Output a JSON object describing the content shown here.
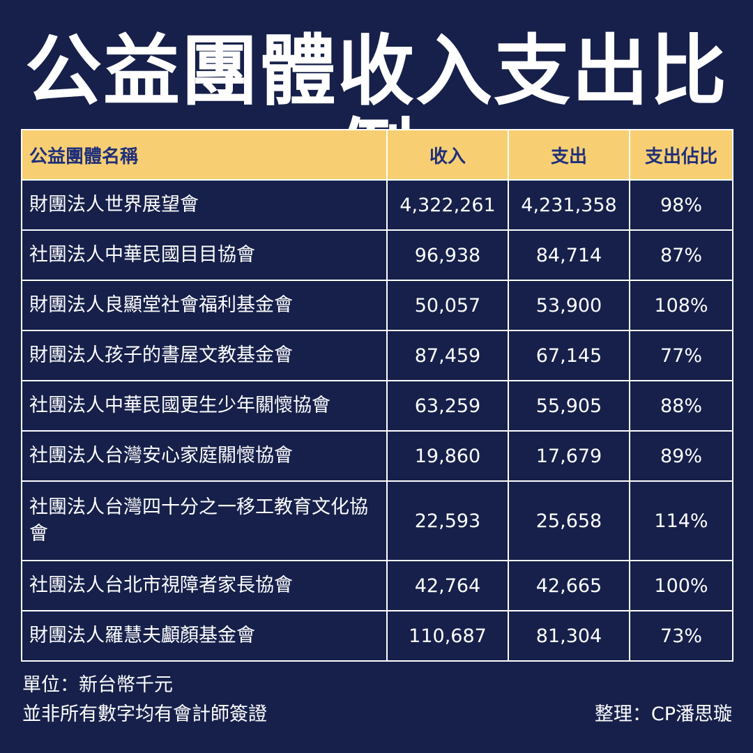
{
  "title": "公益團體收入支出比例",
  "table": {
    "headers": [
      "公益團體名稱",
      "收入",
      "支出",
      "支出佔比"
    ],
    "rows": [
      [
        "財團法人世界展望會",
        "4,322,261",
        "4,231,358",
        "98%"
      ],
      [
        "社團法人中華民國目目協會",
        "96,938",
        "84,714",
        "87%"
      ],
      [
        "財團法人良顯堂社會福利基金會",
        "50,057",
        "53,900",
        "108%"
      ],
      [
        "財團法人孩子的書屋文教基金會",
        "87,459",
        "67,145",
        "77%"
      ],
      [
        "社團法人中華民國更生少年關懷協會",
        "63,259",
        "55,905",
        "88%"
      ],
      [
        "社團法人台灣安心家庭關懷協會",
        "19,860",
        "17,679",
        "89%"
      ],
      [
        "社團法人台灣四十分之一移工教育文化協會",
        "22,593",
        "25,658",
        "114%"
      ],
      [
        "社團法人台北市視障者家長協會",
        "42,764",
        "42,665",
        "100%"
      ],
      [
        "財團法人羅慧夫顱顏基金會",
        "110,687",
        "81,304",
        "73%"
      ]
    ]
  },
  "footer": {
    "unit": "單位：新台幣千元",
    "note": "並非所有數字均有會計師簽證",
    "credit": "整理：CP潘思璇"
  },
  "colors": {
    "background": "#16204a",
    "header_bg": "#f7cf72",
    "header_text": "#1f2f7a",
    "text": "#ffffff",
    "border": "#ffffff"
  }
}
